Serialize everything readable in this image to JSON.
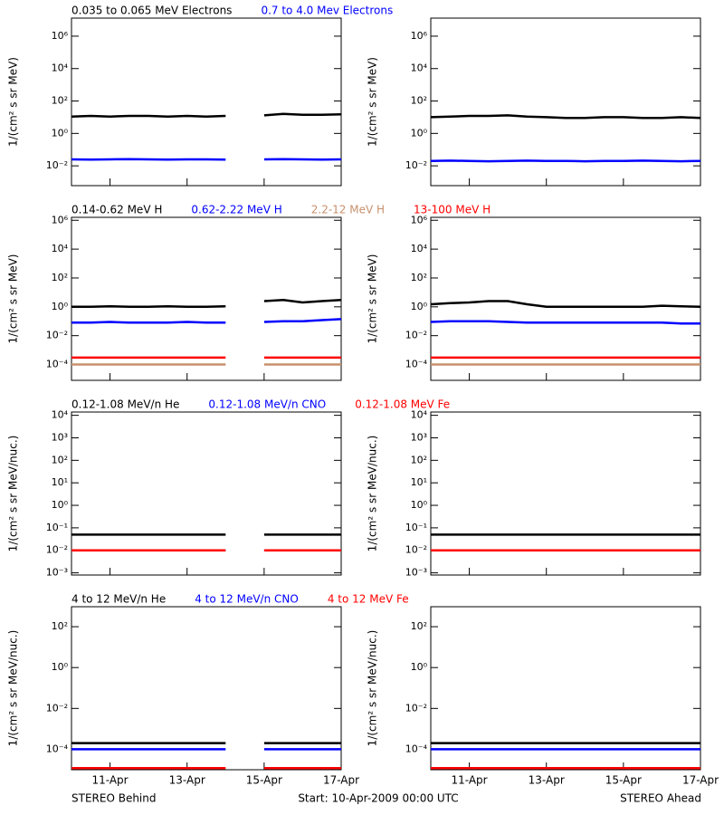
{
  "chart_data": [
    {
      "type": "line",
      "log_scale": true,
      "y_label": "1/(cm² s sr MeV)",
      "ylim": [
        0.0006,
        13000000
      ],
      "yticks": [
        {
          "value": 0.01,
          "label": "10⁻²"
        },
        {
          "value": 1,
          "label": "10⁰"
        },
        {
          "value": 100,
          "label": "10²"
        },
        {
          "value": 10000,
          "label": "10⁴"
        },
        {
          "value": 1000000,
          "label": "10⁶"
        }
      ],
      "legend": [
        {
          "name": "0.035 to 0.065 MeV Electrons",
          "color": "#000000"
        },
        {
          "name": "0.7 to 4.0 Mev Electrons",
          "color": "#0000ff"
        }
      ],
      "panels": [
        {
          "series": [
            {
              "values": [
                11,
                12,
                11,
                12,
                12,
                11,
                12,
                11,
                12,
                null,
                13,
                16,
                14,
                14,
                15
              ]
            },
            {
              "values": [
                0.025,
                0.024,
                0.025,
                0.026,
                0.025,
                0.024,
                0.025,
                0.025,
                0.024,
                null,
                0.025,
                0.026,
                0.025,
                0.024,
                0.025
              ]
            }
          ]
        },
        {
          "series": [
            {
              "values": [
                10,
                11,
                12,
                12,
                13,
                11,
                10,
                9,
                9,
                10,
                10,
                9,
                9,
                10,
                9
              ]
            },
            {
              "values": [
                0.02,
                0.021,
                0.02,
                0.019,
                0.02,
                0.021,
                0.02,
                0.02,
                0.019,
                0.02,
                0.02,
                0.021,
                0.02,
                0.019,
                0.02
              ]
            }
          ]
        }
      ]
    },
    {
      "type": "line",
      "log_scale": true,
      "y_label": "1/(cm² s sr MeV)",
      "ylim": [
        8e-06,
        1600000
      ],
      "yticks": [
        {
          "value": 0.0001,
          "label": "10⁻⁴"
        },
        {
          "value": 0.01,
          "label": "10⁻²"
        },
        {
          "value": 1,
          "label": "10⁰"
        },
        {
          "value": 100,
          "label": "10²"
        },
        {
          "value": 10000,
          "label": "10⁴"
        },
        {
          "value": 1000000,
          "label": "10⁶"
        }
      ],
      "legend": [
        {
          "name": "0.14-0.62 MeV H",
          "color": "#000000"
        },
        {
          "name": "0.62-2.22 MeV H",
          "color": "#0000ff"
        },
        {
          "name": "2.2-12 MeV H",
          "color": "#c8906c"
        },
        {
          "name": "13-100 MeV H",
          "color": "#ff0000"
        }
      ],
      "panels": [
        {
          "series": [
            {
              "values": [
                1,
                1,
                1.1,
                1,
                1,
                1.1,
                1,
                1,
                1.1,
                null,
                2.5,
                3,
                2,
                2.5,
                3
              ]
            },
            {
              "values": [
                0.08,
                0.08,
                0.09,
                0.08,
                0.08,
                0.08,
                0.09,
                0.08,
                0.08,
                null,
                0.09,
                0.1,
                0.1,
                0.12,
                0.14
              ]
            },
            {
              "values": [
                0.0001,
                0.0001,
                0.0001,
                0.0001,
                0.0001,
                0.0001,
                0.0001,
                0.0001,
                0.0001,
                null,
                0.0001,
                0.0001,
                0.0001,
                0.0001,
                0.0001
              ]
            },
            {
              "values": [
                0.0003,
                0.0003,
                0.0003,
                0.0003,
                0.0003,
                0.0003,
                0.0003,
                0.0003,
                0.0003,
                null,
                0.0003,
                0.0003,
                0.0003,
                0.0003,
                0.0003
              ]
            }
          ]
        },
        {
          "series": [
            {
              "values": [
                1.5,
                1.8,
                2,
                2.5,
                2.5,
                1.5,
                1,
                1,
                1,
                1,
                1,
                1,
                1.2,
                1.1,
                1
              ]
            },
            {
              "values": [
                0.09,
                0.1,
                0.1,
                0.1,
                0.09,
                0.08,
                0.08,
                0.08,
                0.08,
                0.08,
                0.08,
                0.08,
                0.08,
                0.07,
                0.07
              ]
            },
            {
              "values": [
                0.0001,
                0.0001,
                0.0001,
                0.0001,
                0.0001,
                0.0001,
                0.0001,
                0.0001,
                0.0001,
                0.0001,
                0.0001,
                0.0001,
                0.0001,
                0.0001,
                0.0001
              ]
            },
            {
              "values": [
                0.0003,
                0.0003,
                0.0003,
                0.0003,
                0.0003,
                0.0003,
                0.0003,
                0.0003,
                0.0003,
                0.0003,
                0.0003,
                0.0003,
                0.0003,
                0.0003,
                0.0003
              ]
            }
          ]
        }
      ]
    },
    {
      "type": "line",
      "log_scale": true,
      "y_label": "1/(cm² s sr MeV/nuc.)",
      "ylim": [
        0.0008,
        14000
      ],
      "yticks": [
        {
          "value": 0.001,
          "label": "10⁻³"
        },
        {
          "value": 0.01,
          "label": "10⁻²"
        },
        {
          "value": 0.1,
          "label": "10⁻¹"
        },
        {
          "value": 1,
          "label": "10⁰"
        },
        {
          "value": 10,
          "label": "10¹"
        },
        {
          "value": 100,
          "label": "10²"
        },
        {
          "value": 1000,
          "label": "10³"
        },
        {
          "value": 10000,
          "label": "10⁴"
        }
      ],
      "legend": [
        {
          "name": "0.12-1.08 MeV/n He",
          "color": "#000000"
        },
        {
          "name": "0.12-1.08 MeV/n CNO",
          "color": "#0000ff"
        },
        {
          "name": "0.12-1.08 MeV Fe",
          "color": "#ff0000"
        }
      ],
      "panels": [
        {
          "series": [
            {
              "values": [
                0.05,
                0.05,
                0.05,
                0.05,
                0.05,
                0.05,
                0.05,
                0.05,
                0.05,
                null,
                0.05,
                0.05,
                0.05,
                0.05,
                0.05
              ]
            },
            {
              "values": [
                0.01,
                0.01,
                0.01,
                0.01,
                0.01,
                0.01,
                0.01,
                0.01,
                0.01,
                null,
                0.01,
                0.01,
                0.01,
                0.01,
                0.01
              ]
            },
            {
              "values": [
                0.01,
                0.01,
                0.01,
                0.01,
                0.01,
                0.01,
                0.01,
                0.01,
                0.01,
                null,
                0.01,
                0.01,
                0.01,
                0.01,
                0.01
              ]
            }
          ]
        },
        {
          "series": [
            {
              "values": [
                0.05,
                0.05,
                0.05,
                0.05,
                0.05,
                0.05,
                0.05,
                0.05,
                0.05,
                0.05,
                0.05,
                0.05,
                0.05,
                0.05,
                0.05
              ]
            },
            {
              "values": [
                0.01,
                0.01,
                0.01,
                0.01,
                0.01,
                0.01,
                0.01,
                0.01,
                0.01,
                0.01,
                0.01,
                0.01,
                0.01,
                0.01,
                0.01
              ]
            },
            {
              "values": [
                0.01,
                0.01,
                0.01,
                0.01,
                0.01,
                0.01,
                0.01,
                0.01,
                0.01,
                0.01,
                0.01,
                0.01,
                0.01,
                0.01,
                0.01
              ]
            }
          ]
        }
      ]
    },
    {
      "type": "line",
      "log_scale": true,
      "y_label": "1/(cm² s sr MeV/nuc.)",
      "ylim": [
        1e-05,
        950
      ],
      "yticks": [
        {
          "value": 0.0001,
          "label": "10⁻⁴"
        },
        {
          "value": 0.01,
          "label": "10⁻²"
        },
        {
          "value": 1,
          "label": "10⁰"
        },
        {
          "value": 100,
          "label": "10²"
        }
      ],
      "legend": [
        {
          "name": "4 to 12 MeV/n He",
          "color": "#000000"
        },
        {
          "name": "4 to 12 MeV/n CNO",
          "color": "#0000ff"
        },
        {
          "name": "4 to 12 MeV Fe",
          "color": "#ff0000"
        }
      ],
      "panels": [
        {
          "series": [
            {
              "values": [
                0.0002,
                0.0002,
                0.0002,
                0.0002,
                0.0002,
                0.0002,
                0.0002,
                0.0002,
                0.0002,
                null,
                0.0002,
                0.0002,
                0.0002,
                0.0002,
                0.0002
              ]
            },
            {
              "values": [
                0.0001,
                0.0001,
                0.0001,
                0.0001,
                0.0001,
                0.0001,
                0.0001,
                0.0001,
                0.0001,
                null,
                0.0001,
                0.0001,
                0.0001,
                0.0001,
                0.0001
              ]
            },
            {
              "values": [
                1.2e-05,
                1.2e-05,
                1.2e-05,
                1.2e-05,
                1.2e-05,
                1.2e-05,
                1.2e-05,
                1.2e-05,
                1.2e-05,
                null,
                1.2e-05,
                1.2e-05,
                1.2e-05,
                1.2e-05,
                1.2e-05
              ]
            }
          ]
        },
        {
          "series": [
            {
              "values": [
                0.0002,
                0.0002,
                0.0002,
                0.0002,
                0.0002,
                0.0002,
                0.0002,
                0.0002,
                0.0002,
                0.0002,
                0.0002,
                0.0002,
                0.0002,
                0.0002,
                0.0002
              ]
            },
            {
              "values": [
                0.0001,
                0.0001,
                0.0001,
                0.0001,
                0.0001,
                0.0001,
                0.0001,
                0.0001,
                0.0001,
                0.0001,
                0.0001,
                0.0001,
                0.0001,
                0.0001,
                0.0001
              ]
            },
            {
              "values": [
                1.2e-05,
                1.2e-05,
                1.2e-05,
                1.2e-05,
                1.2e-05,
                1.2e-05,
                1.2e-05,
                1.2e-05,
                1.2e-05,
                1.2e-05,
                1.2e-05,
                1.2e-05,
                1.2e-05,
                1.2e-05,
                1.2e-05
              ]
            }
          ]
        }
      ]
    }
  ],
  "x": [
    0,
    0.5,
    1,
    1.5,
    2,
    2.5,
    3,
    3.5,
    4,
    4.5,
    5,
    5.5,
    6,
    6.5,
    7
  ],
  "xlim": [
    0,
    7
  ],
  "xticks": [
    {
      "value": 1,
      "label": "11-Apr"
    },
    {
      "value": 3,
      "label": "13-Apr"
    },
    {
      "value": 5,
      "label": "15-Apr"
    },
    {
      "value": 7,
      "label": "17-Apr"
    }
  ],
  "footer": {
    "left": "STEREO Behind",
    "center": "Start: 10-Apr-2009 00:00 UTC",
    "right": "STEREO Ahead"
  }
}
